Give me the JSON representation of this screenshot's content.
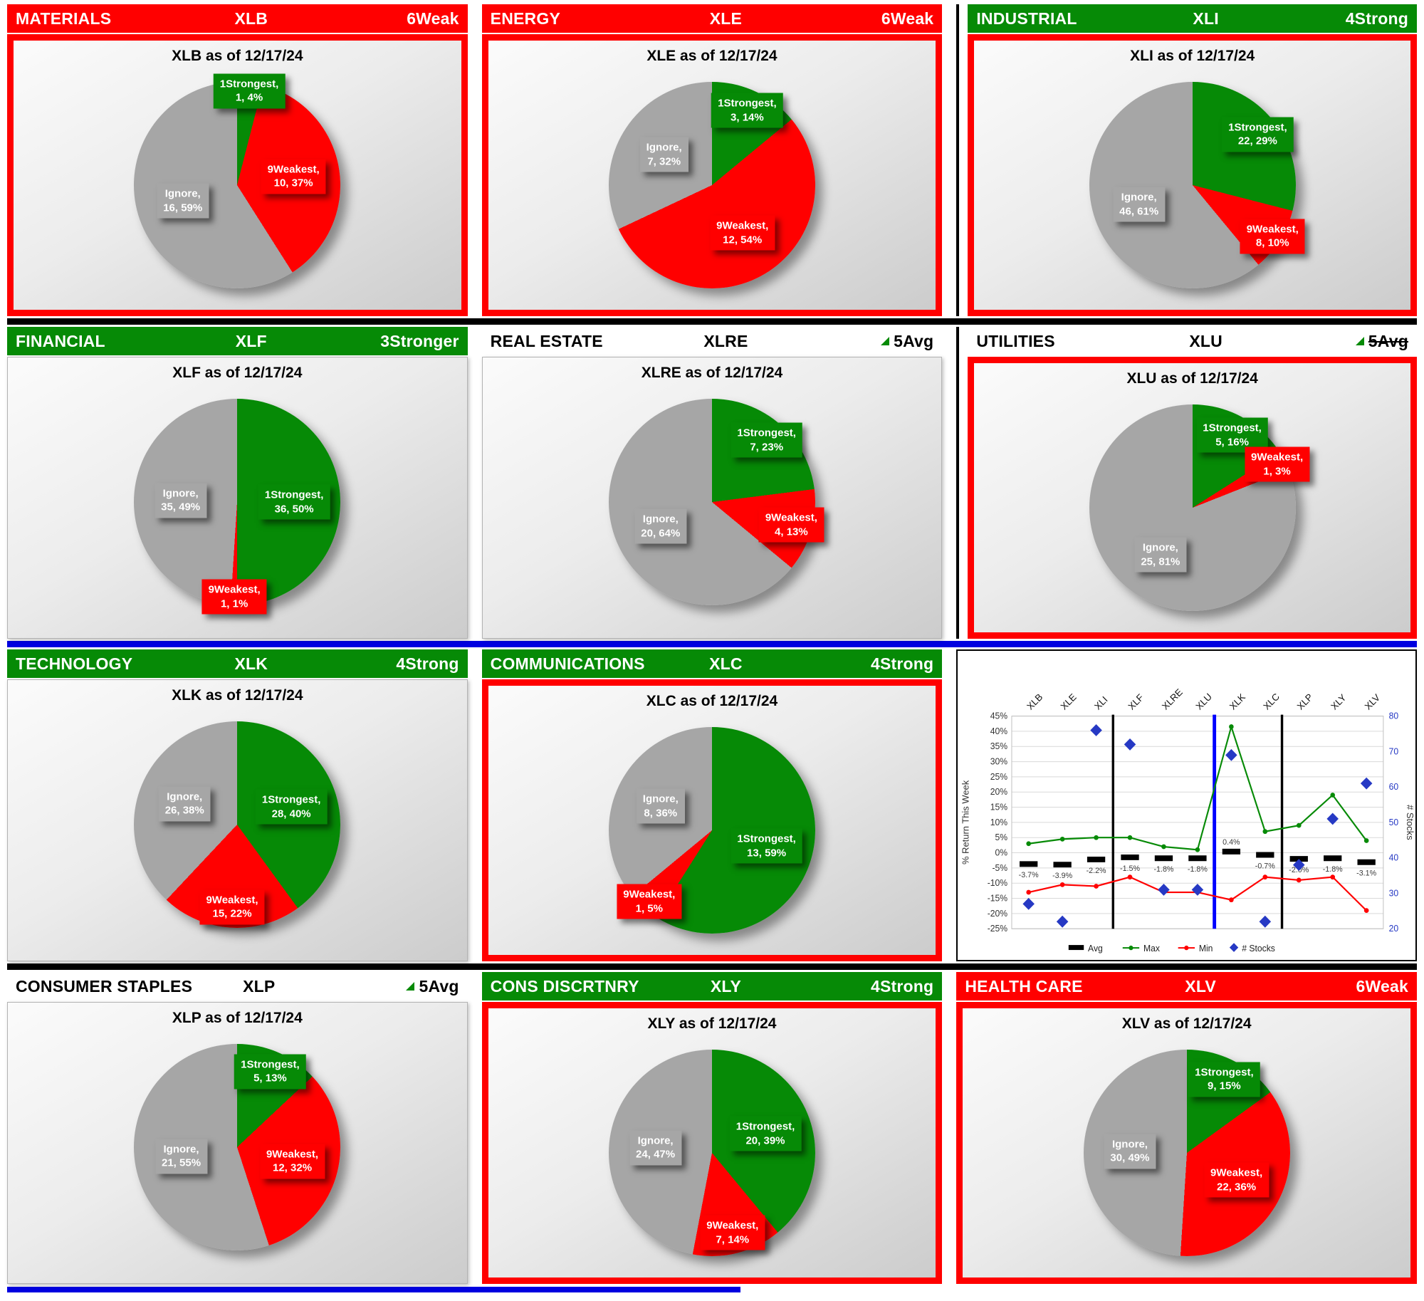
{
  "colors": {
    "strong_green": "#068a06",
    "weak_red": "#ff0000",
    "ignore_gray": "#a6a6a6",
    "divider_blue": "#0000e0",
    "stocks_blue": "#2639c4"
  },
  "panels": [
    {
      "sector": "MATERIALS",
      "ticker": "XLB",
      "rating": "6Weak",
      "header_style": "red",
      "border": "red",
      "flag": false,
      "strike": false
    },
    {
      "sector": "ENERGY",
      "ticker": "XLE",
      "rating": "6Weak",
      "header_style": "red",
      "border": "red",
      "flag": false,
      "strike": false
    },
    {
      "sector": "INDUSTRIAL",
      "ticker": "XLI",
      "rating": "4Strong",
      "header_style": "green",
      "border": "red",
      "flag": false,
      "strike": false
    },
    {
      "sector": "FINANCIAL",
      "ticker": "XLF",
      "rating": "3Stronger",
      "header_style": "green",
      "border": "plain",
      "flag": false,
      "strike": false
    },
    {
      "sector": "REAL ESTATE",
      "ticker": "XLRE",
      "rating": "5Avg",
      "header_style": "white",
      "border": "plain",
      "flag": true,
      "strike": false
    },
    {
      "sector": "UTILITIES",
      "ticker": "XLU",
      "rating": "5Avg",
      "header_style": "white",
      "border": "red",
      "flag": true,
      "strike": true
    },
    {
      "sector": "TECHNOLOGY",
      "ticker": "XLK",
      "rating": "4Strong",
      "header_style": "green",
      "border": "plain",
      "flag": false,
      "strike": false
    },
    {
      "sector": "COMMUNICATIONS",
      "ticker": "XLC",
      "rating": "4Strong",
      "header_style": "green",
      "border": "red",
      "flag": false,
      "strike": false
    },
    {
      "sector": "CONSUMER STAPLES",
      "ticker": "XLP",
      "rating": "5Avg",
      "header_style": "white",
      "border": "plain",
      "flag": true,
      "strike": false
    },
    {
      "sector": "CONS DISCRTNRY",
      "ticker": "XLY",
      "rating": "4Strong",
      "header_style": "green",
      "border": "red",
      "flag": false,
      "strike": false
    },
    {
      "sector": "HEALTH CARE",
      "ticker": "XLV",
      "rating": "6Weak",
      "header_style": "red",
      "border": "red",
      "flag": false,
      "strike": false
    }
  ],
  "chart_data": [
    {
      "type": "pie",
      "title": "XLB as of 12/17/24",
      "slices": [
        {
          "name": "1Strongest",
          "count": 1,
          "pct": 4,
          "color": "green"
        },
        {
          "name": "9Weakest",
          "count": 10,
          "pct": 37,
          "color": "red"
        },
        {
          "name": "Ignore",
          "count": 16,
          "pct": 59,
          "color": "gray"
        }
      ]
    },
    {
      "type": "pie",
      "title": "XLE as of 12/17/24",
      "slices": [
        {
          "name": "1Strongest",
          "count": 3,
          "pct": 14,
          "color": "green"
        },
        {
          "name": "9Weakest",
          "count": 12,
          "pct": 54,
          "color": "red"
        },
        {
          "name": "Ignore",
          "count": 7,
          "pct": 32,
          "color": "gray"
        }
      ]
    },
    {
      "type": "pie",
      "title": "XLI as of 12/17/24",
      "slices": [
        {
          "name": "1Strongest",
          "count": 22,
          "pct": 29,
          "color": "green"
        },
        {
          "name": "9Weakest",
          "count": 8,
          "pct": 10,
          "color": "red"
        },
        {
          "name": "Ignore",
          "count": 46,
          "pct": 61,
          "color": "gray"
        }
      ]
    },
    {
      "type": "pie",
      "title": "XLF as of 12/17/24",
      "slices": [
        {
          "name": "1Strongest",
          "count": 36,
          "pct": 50,
          "color": "green"
        },
        {
          "name": "9Weakest",
          "count": 1,
          "pct": 1,
          "color": "red"
        },
        {
          "name": "Ignore",
          "count": 35,
          "pct": 49,
          "color": "gray"
        }
      ]
    },
    {
      "type": "pie",
      "title": "XLRE as of 12/17/24",
      "slices": [
        {
          "name": "1Strongest",
          "count": 7,
          "pct": 23,
          "color": "green"
        },
        {
          "name": "9Weakest",
          "count": 4,
          "pct": 13,
          "color": "red"
        },
        {
          "name": "Ignore",
          "count": 20,
          "pct": 64,
          "color": "gray"
        }
      ]
    },
    {
      "type": "pie",
      "title": "XLU as of 12/17/24",
      "slices": [
        {
          "name": "1Strongest",
          "count": 5,
          "pct": 16,
          "color": "green"
        },
        {
          "name": "9Weakest",
          "count": 1,
          "pct": 3,
          "color": "red"
        },
        {
          "name": "Ignore",
          "count": 25,
          "pct": 81,
          "color": "gray"
        }
      ]
    },
    {
      "type": "pie",
      "title": "XLK as of 12/17/24",
      "slices": [
        {
          "name": "1Strongest",
          "count": 28,
          "pct": 40,
          "color": "green"
        },
        {
          "name": "9Weakest",
          "count": 15,
          "pct": 22,
          "color": "red"
        },
        {
          "name": "Ignore",
          "count": 26,
          "pct": 38,
          "color": "gray"
        }
      ]
    },
    {
      "type": "pie",
      "title": "XLC as of 12/17/24",
      "slices": [
        {
          "name": "1Strongest",
          "count": 13,
          "pct": 59,
          "color": "green"
        },
        {
          "name": "9Weakest",
          "count": 1,
          "pct": 5,
          "color": "red"
        },
        {
          "name": "Ignore",
          "count": 8,
          "pct": 36,
          "color": "gray"
        }
      ]
    },
    {
      "type": "pie",
      "title": "XLP as of 12/17/24",
      "slices": [
        {
          "name": "1Strongest",
          "count": 5,
          "pct": 13,
          "color": "green"
        },
        {
          "name": "9Weakest",
          "count": 12,
          "pct": 32,
          "color": "red"
        },
        {
          "name": "Ignore",
          "count": 21,
          "pct": 55,
          "color": "gray"
        }
      ]
    },
    {
      "type": "pie",
      "title": "XLY as of 12/17/24",
      "slices": [
        {
          "name": "1Strongest",
          "count": 20,
          "pct": 39,
          "color": "green"
        },
        {
          "name": "9Weakest",
          "count": 7,
          "pct": 14,
          "color": "red"
        },
        {
          "name": "Ignore",
          "count": 24,
          "pct": 47,
          "color": "gray"
        }
      ]
    },
    {
      "type": "pie",
      "title": "XLV as of 12/17/24",
      "slices": [
        {
          "name": "1Strongest",
          "count": 9,
          "pct": 15,
          "color": "green"
        },
        {
          "name": "9Weakest",
          "count": 22,
          "pct": 36,
          "color": "red"
        },
        {
          "name": "Ignore",
          "count": 30,
          "pct": 49,
          "color": "gray"
        }
      ]
    },
    {
      "type": "line",
      "categories": [
        "XLB",
        "XLE",
        "XLI",
        "XLF",
        "XLRE",
        "XLU",
        "XLK",
        "XLC",
        "XLP",
        "XLY",
        "XLV"
      ],
      "left_axis": {
        "label": "% Return This Week",
        "min": -25,
        "max": 45,
        "step": 5,
        "tick_suffix": "%"
      },
      "right_axis": {
        "label": "# Stocks",
        "min": 20,
        "max": 80,
        "step": 10
      },
      "series": [
        {
          "name": "Avg",
          "style": "dash",
          "color": "#000000",
          "axis": "left",
          "values": [
            -3.7,
            -3.9,
            -2.2,
            -1.5,
            -1.8,
            -1.8,
            0.4,
            -0.7,
            -2.0,
            -1.8,
            -3.1
          ],
          "labels": [
            "-3.7%",
            "-3.9%",
            "-2.2%",
            "-1.5%",
            "-1.8%",
            "-1.8%",
            "0.4%",
            "-0.7%",
            "-2.0%",
            "-1.8%",
            "-3.1%"
          ]
        },
        {
          "name": "Max",
          "style": "line",
          "color": "#068a06",
          "axis": "left",
          "values": [
            3,
            4.5,
            5,
            5,
            2,
            1,
            41.5,
            7,
            9,
            19,
            4
          ]
        },
        {
          "name": "Min",
          "style": "line",
          "color": "#ff0000",
          "axis": "left",
          "values": [
            -13,
            -10.5,
            -11,
            -8,
            -13,
            -13,
            -15.5,
            -8,
            -9,
            -8,
            -19
          ]
        },
        {
          "name": "# Stocks",
          "style": "diamond",
          "color": "#2639c4",
          "axis": "right",
          "values": [
            27,
            22,
            76,
            72,
            31,
            31,
            69,
            22,
            38,
            51,
            61
          ]
        }
      ],
      "dividers": [
        {
          "after": "XLI",
          "color": "#000000"
        },
        {
          "after": "XLU",
          "color": "#0000ff"
        },
        {
          "after": "XLC",
          "color": "#000000"
        }
      ],
      "legend": [
        "Avg",
        "Max",
        "Min",
        "# Stocks"
      ],
      "grid": true,
      "legend_position": "bottom"
    }
  ]
}
